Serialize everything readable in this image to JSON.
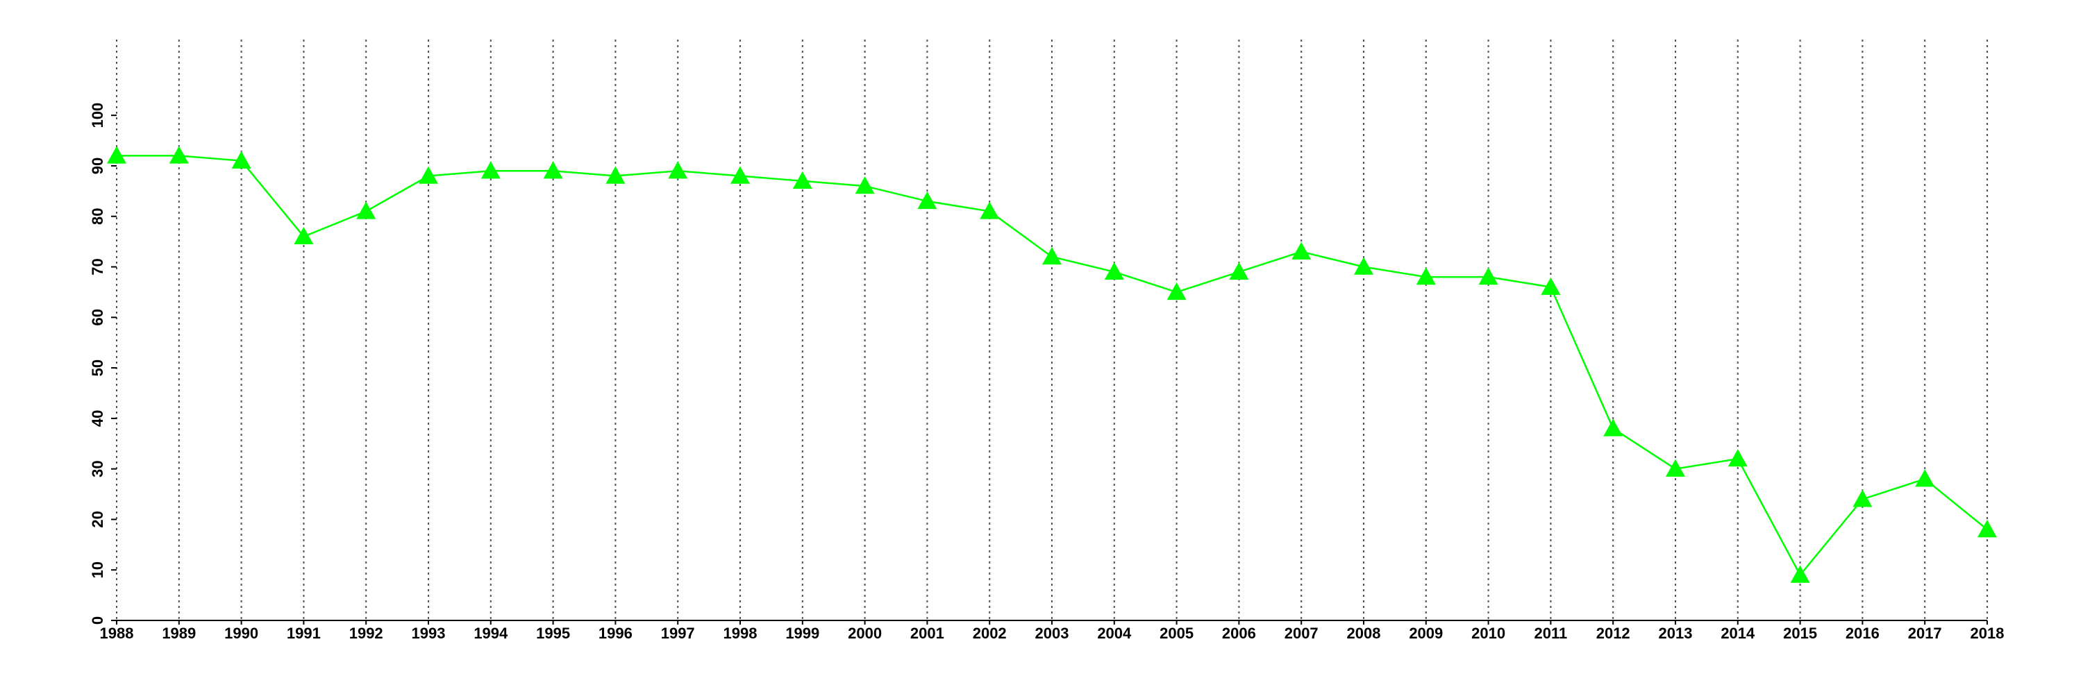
{
  "chart_data": {
    "type": "line",
    "x": [
      1988,
      1989,
      1990,
      1991,
      1992,
      1993,
      1994,
      1995,
      1996,
      1997,
      1998,
      1999,
      2000,
      2001,
      2002,
      2003,
      2004,
      2005,
      2006,
      2007,
      2008,
      2009,
      2010,
      2011,
      2012,
      2013,
      2014,
      2015,
      2016,
      2017,
      2018
    ],
    "values": [
      92,
      92,
      91,
      76,
      81,
      88,
      89,
      89,
      88,
      89,
      88,
      87,
      86,
      83,
      81,
      72,
      69,
      65,
      69,
      73,
      70,
      68,
      68,
      66,
      38,
      30,
      32,
      9,
      24,
      28,
      18
    ],
    "color": "#00ff00",
    "xlim": [
      1988,
      2018
    ],
    "xticks": [
      1988,
      1989,
      1990,
      1991,
      1992,
      1993,
      1994,
      1995,
      1996,
      1997,
      1998,
      1999,
      2000,
      2001,
      2002,
      2003,
      2004,
      2005,
      2006,
      2007,
      2008,
      2009,
      2010,
      2011,
      2012,
      2013,
      2014,
      2015,
      2016,
      2017,
      2018
    ],
    "ylim": [
      0,
      115
    ],
    "yticks": [
      0,
      10,
      20,
      30,
      40,
      50,
      60,
      70,
      80,
      90,
      100
    ],
    "grid": true
  }
}
